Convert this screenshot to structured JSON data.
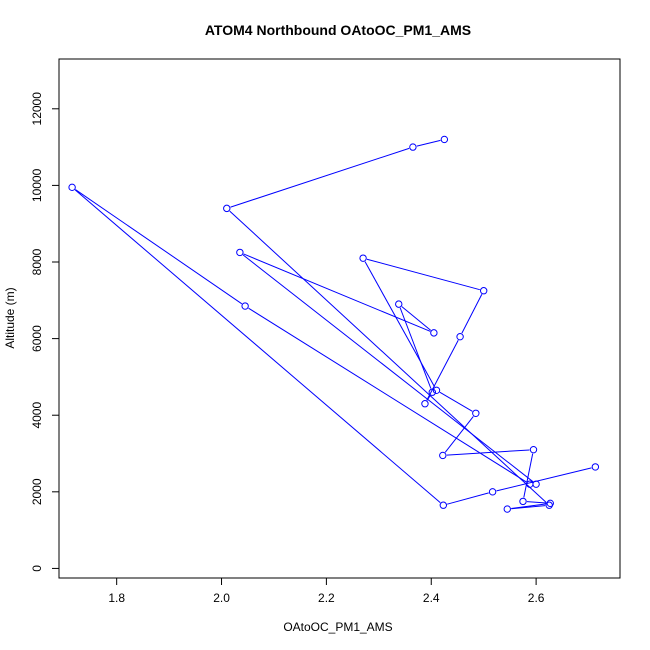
{
  "chart_data": {
    "type": "line",
    "title": "ATOM4 Northbound OAtoOC_PM1_AMS",
    "xlabel": "OAtoOC_PM1_AMS",
    "ylabel": "Altitude (m)",
    "xlim": [
      1.69,
      2.76
    ],
    "ylim": [
      -250,
      13300
    ],
    "xticks": [
      1.8,
      2.0,
      2.2,
      2.4,
      2.6
    ],
    "yticks": [
      0,
      2000,
      4000,
      6000,
      8000,
      10000,
      12000
    ],
    "color": "#0000ff",
    "grid": false,
    "series": [
      {
        "x": [
          2.425,
          2.365,
          2.01,
          2.625,
          2.545,
          2.627,
          2.575,
          2.595,
          2.422,
          2.485,
          2.41,
          2.27,
          2.5,
          2.455,
          2.388,
          2.402,
          2.338,
          2.405,
          2.035,
          2.6,
          2.588,
          2.045,
          1.715,
          2.423,
          2.517,
          2.713
        ],
        "y": [
          11200,
          11000,
          9400,
          1650,
          1550,
          1700,
          1750,
          3100,
          2950,
          4050,
          4650,
          8100,
          7250,
          6050,
          4300,
          4600,
          6900,
          6150,
          8250,
          2200,
          2200,
          6850,
          9950,
          1650,
          2000,
          2650
        ]
      }
    ]
  }
}
